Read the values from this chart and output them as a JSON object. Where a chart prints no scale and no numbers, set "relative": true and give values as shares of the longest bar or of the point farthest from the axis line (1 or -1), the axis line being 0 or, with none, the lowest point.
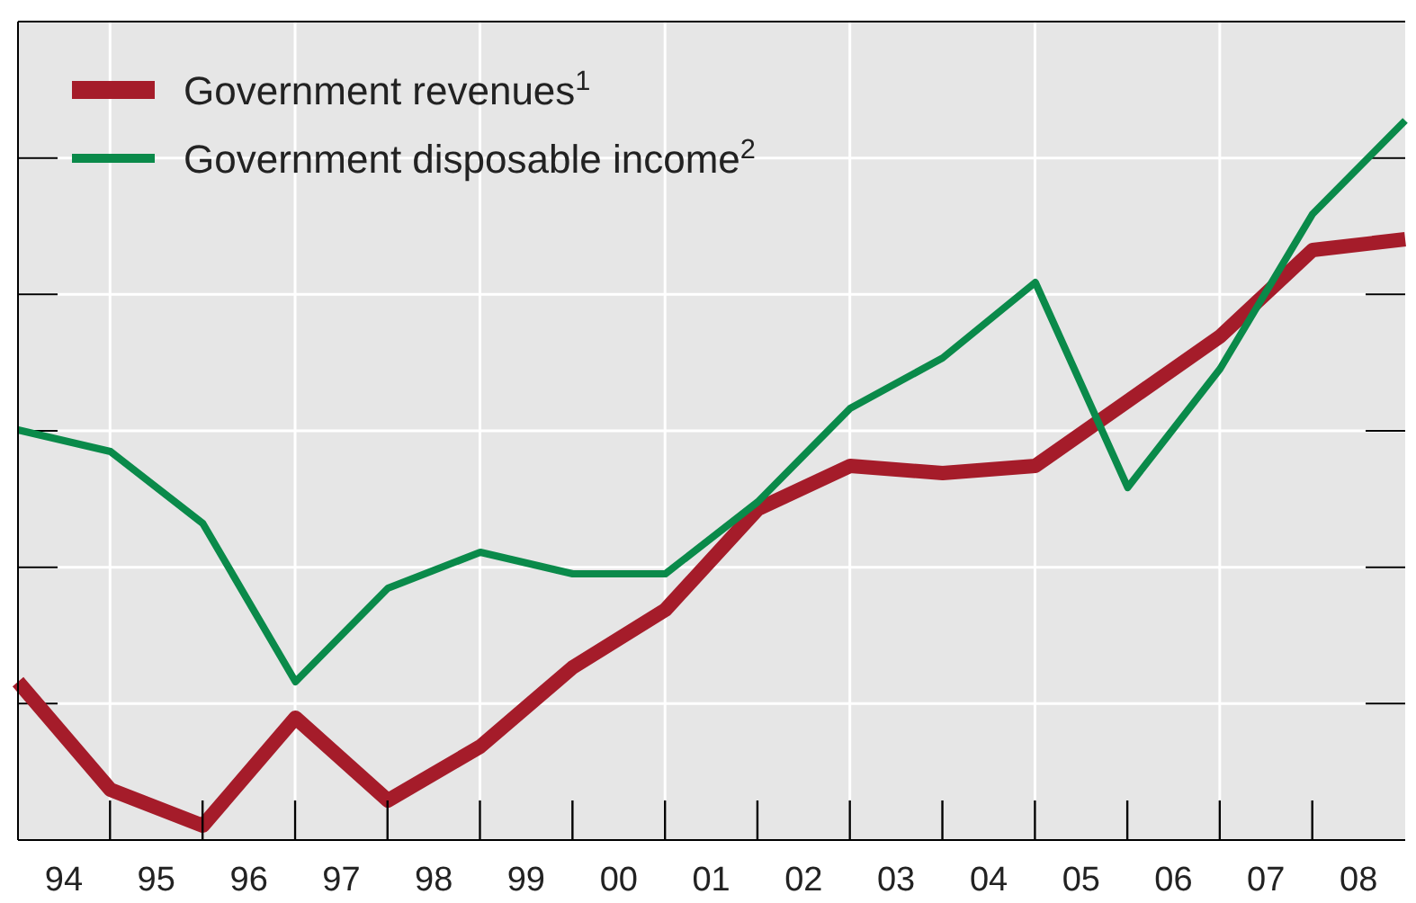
{
  "chart_data": {
    "type": "line",
    "relative": true,
    "grid": true,
    "legend": "top left",
    "x": [
      "1994-01-01",
      "1995-01-01",
      "1996-01-01",
      "1997-01-01",
      "1998-01-01",
      "1999-01-01",
      "2000-01-01",
      "2001-01-01",
      "2002-01-01",
      "2003-01-01",
      "2004-01-01",
      "2005-01-01",
      "2006-01-01",
      "2007-01-01",
      "2008-01-01",
      "2009-01-01"
    ],
    "xlim": [
      "1994-01-01",
      "2009-01-01"
    ],
    "xticks": [
      {
        "value": "1994-07-01",
        "label": "94"
      },
      {
        "value": "1995-07-01",
        "label": "95"
      },
      {
        "value": "1996-07-01",
        "label": "96"
      },
      {
        "value": "1997-07-01",
        "label": "97"
      },
      {
        "value": "1998-07-01",
        "label": "98"
      },
      {
        "value": "1999-07-01",
        "label": "99"
      },
      {
        "value": "2000-07-01",
        "label": "00"
      },
      {
        "value": "2001-07-01",
        "label": "01"
      },
      {
        "value": "2002-07-01",
        "label": "02"
      },
      {
        "value": "2003-07-01",
        "label": "03"
      },
      {
        "value": "2004-07-01",
        "label": "04"
      },
      {
        "value": "2005-07-01",
        "label": "05"
      },
      {
        "value": "2006-07-01",
        "label": "06"
      },
      {
        "value": "2007-07-01",
        "label": "07"
      },
      {
        "value": "2008-07-01",
        "label": "08"
      }
    ],
    "series": [
      {
        "name": "Government revenues$^{1}$",
        "color": "#a51c2a",
        "values": [
          0.22,
          0.07,
          0.02,
          0.17,
          0.055,
          0.13,
          0.24,
          0.32,
          0.46,
          0.52,
          0.51,
          0.52,
          0.61,
          0.7,
          0.82,
          0.835
        ]
      },
      {
        "name": "Government disposable income$^{2}$",
        "color": "#0a8a4a",
        "values": [
          0.57,
          0.54,
          0.44,
          0.22,
          0.35,
          0.4,
          0.37,
          0.37,
          0.47,
          0.6,
          0.67,
          0.775,
          0.49,
          0.655,
          0.87,
          1
        ]
      }
    ]
  }
}
